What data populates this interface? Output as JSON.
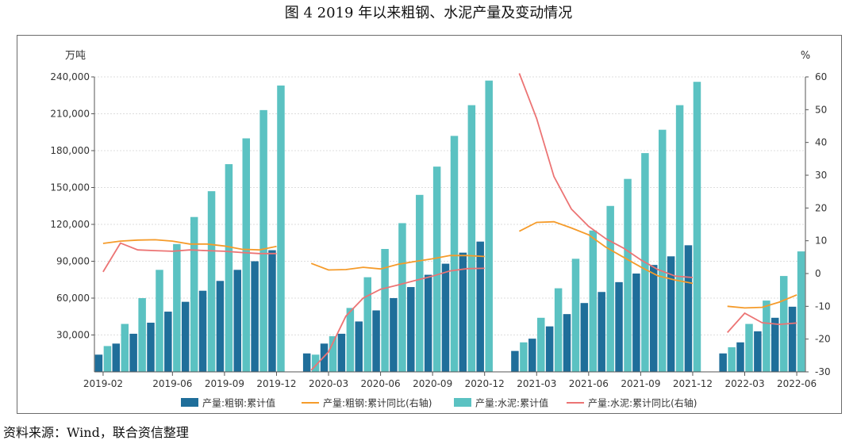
{
  "figure": {
    "title": "图 4   2019 年以来粗钢、水泥产量及变动情况",
    "source": "资料来源：Wind，联合资信整理"
  },
  "colors": {
    "steel_bar": "#1f6e9a",
    "cement_bar": "#5bc2c2",
    "steel_yoy": "#f59b2a",
    "cement_yoy": "#ec7474",
    "grid": "#dddddd",
    "axis": "#555555"
  },
  "chart_data": {
    "type": "bar",
    "title": "图 4   2019 年以来粗钢、水泥产量及变动情况",
    "ylabel_left": "万吨",
    "ylabel_right": "%",
    "ylim_left": [
      0,
      240000
    ],
    "ylim_right": [
      -30,
      60
    ],
    "yticks_left": [
      30000,
      60000,
      90000,
      120000,
      150000,
      180000,
      210000,
      240000
    ],
    "ytick_labels_left": [
      "30,000",
      "60,000",
      "90,000",
      "120,000",
      "150,000",
      "180,000",
      "210,000",
      "240,000"
    ],
    "yticks_right": [
      -30,
      -20,
      -10,
      0,
      10,
      20,
      30,
      40,
      50,
      60
    ],
    "ytick_labels_right": [
      "-30",
      "-20",
      "-10",
      "0",
      "10",
      "20",
      "30",
      "40",
      "50",
      "60"
    ],
    "categories": [
      "2019-02",
      "2019-03",
      "2019-04",
      "2019-05",
      "2019-06",
      "2019-07",
      "2019-08",
      "2019-09",
      "2019-10",
      "2019-11",
      "2019-12",
      "2020-01",
      "2020-02",
      "2020-03",
      "2020-04",
      "2020-05",
      "2020-06",
      "2020-07",
      "2020-08",
      "2020-09",
      "2020-10",
      "2020-11",
      "2020-12",
      "2021-01",
      "2021-02",
      "2021-03",
      "2021-04",
      "2021-05",
      "2021-06",
      "2021-07",
      "2021-08",
      "2021-09",
      "2021-10",
      "2021-11",
      "2021-12",
      "2022-01",
      "2022-02",
      "2022-03",
      "2022-04",
      "2022-05",
      "2022-06"
    ],
    "x_tick_labels": [
      {
        "index": 0,
        "label": "2019-02"
      },
      {
        "index": 4,
        "label": "2019-06"
      },
      {
        "index": 7,
        "label": "2019-09"
      },
      {
        "index": 10,
        "label": "2019-12"
      },
      {
        "index": 13,
        "label": "2020-03"
      },
      {
        "index": 16,
        "label": "2020-06"
      },
      {
        "index": 19,
        "label": "2020-09"
      },
      {
        "index": 22,
        "label": "2020-12"
      },
      {
        "index": 25,
        "label": "2021-03"
      },
      {
        "index": 28,
        "label": "2021-06"
      },
      {
        "index": 31,
        "label": "2021-09"
      },
      {
        "index": 34,
        "label": "2021-12"
      },
      {
        "index": 37,
        "label": "2022-03"
      },
      {
        "index": 40,
        "label": "2022-06"
      }
    ],
    "series": [
      {
        "name": "产量:粗钢:累计值",
        "type": "bar",
        "axis": "left",
        "values": [
          14000,
          23000,
          31000,
          40000,
          49000,
          57000,
          66000,
          74000,
          83000,
          90000,
          99000,
          null,
          15000,
          23000,
          31000,
          41000,
          50000,
          60000,
          69000,
          79000,
          88000,
          97000,
          106000,
          null,
          17000,
          27000,
          37000,
          47000,
          56000,
          65000,
          73000,
          80000,
          87000,
          94000,
          103000,
          null,
          15000,
          24000,
          33000,
          44000,
          53000
        ]
      },
      {
        "name": "产量:粗钢:累计同比(右轴)",
        "type": "line",
        "axis": "right",
        "values": [
          9.2,
          9.9,
          10.2,
          10.3,
          9.9,
          9.0,
          9.0,
          8.4,
          7.4,
          7.2,
          8.3,
          null,
          3.1,
          1.1,
          1.2,
          1.9,
          1.4,
          2.8,
          3.7,
          4.5,
          5.5,
          5.5,
          5.2,
          null,
          12.9,
          15.6,
          15.8,
          13.9,
          11.8,
          8.0,
          5.0,
          2.0,
          -0.7,
          -2.0,
          -3.0,
          null,
          -10.0,
          -10.5,
          -10.3,
          -8.7,
          -6.5
        ]
      },
      {
        "name": "产量:水泥:累计值",
        "type": "bar",
        "axis": "left",
        "values": [
          21000,
          39000,
          60000,
          83000,
          104000,
          126000,
          147000,
          169000,
          190000,
          213000,
          233000,
          null,
          14000,
          29000,
          52000,
          77000,
          100000,
          121000,
          144000,
          167000,
          192000,
          217000,
          237000,
          null,
          24000,
          44000,
          68000,
          92000,
          115000,
          135000,
          157000,
          178000,
          197000,
          217000,
          236000,
          null,
          20000,
          39000,
          58000,
          78000,
          98000
        ]
      },
      {
        "name": "产量:水泥:累计同比(右轴)",
        "type": "line",
        "axis": "right",
        "values": [
          0.5,
          9.3,
          7.2,
          7.0,
          6.8,
          7.2,
          7.0,
          6.8,
          6.4,
          6.1,
          6.1,
          null,
          -29.5,
          -23.9,
          -13.0,
          -7.5,
          -4.8,
          -3.5,
          -2.1,
          -0.8,
          0.8,
          1.5,
          1.6,
          null,
          61.1,
          47.3,
          29.6,
          19.7,
          14.4,
          10.6,
          7.8,
          4.2,
          1.2,
          -0.8,
          -1.2,
          null,
          -18.0,
          -12.1,
          -15.0,
          -15.5,
          -15.1
        ]
      }
    ],
    "legend": {
      "position": "bottom"
    }
  }
}
